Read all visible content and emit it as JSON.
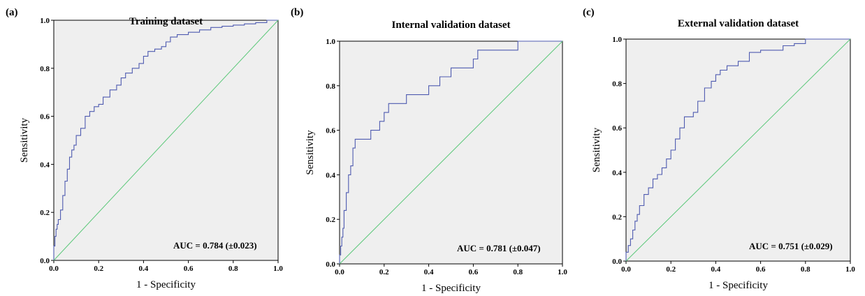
{
  "chart_data": [
    {
      "type": "line",
      "panel_label": "(a)",
      "title": "Training dataset",
      "xlabel": "1 - Specificity",
      "ylabel": "Sensitivity",
      "xlim": [
        0,
        1
      ],
      "ylim": [
        0,
        1
      ],
      "xticks": [
        "0.0",
        "0.2",
        "0.4",
        "0.6",
        "0.8",
        "1.0"
      ],
      "yticks": [
        "0.0",
        "0.2",
        "0.4",
        "0.6",
        "0.8",
        "1.0"
      ],
      "annotation": "AUC = 0.784 (±0.023)",
      "grid": false,
      "series": [
        {
          "role": "roc",
          "color": "#4f5bb0",
          "x": [
            0,
            0.005,
            0.01,
            0.015,
            0.02,
            0.03,
            0.04,
            0.05,
            0.06,
            0.07,
            0.08,
            0.09,
            0.1,
            0.12,
            0.14,
            0.16,
            0.18,
            0.2,
            0.22,
            0.25,
            0.28,
            0.3,
            0.32,
            0.35,
            0.38,
            0.4,
            0.42,
            0.45,
            0.48,
            0.5,
            0.52,
            0.55,
            0.6,
            0.65,
            0.7,
            0.75,
            0.8,
            0.85,
            0.9,
            0.95,
            1.0
          ],
          "y": [
            0,
            0.06,
            0.1,
            0.13,
            0.15,
            0.17,
            0.21,
            0.27,
            0.33,
            0.38,
            0.43,
            0.46,
            0.48,
            0.52,
            0.55,
            0.6,
            0.62,
            0.64,
            0.65,
            0.68,
            0.71,
            0.73,
            0.76,
            0.78,
            0.8,
            0.82,
            0.85,
            0.87,
            0.88,
            0.89,
            0.91,
            0.93,
            0.94,
            0.95,
            0.96,
            0.97,
            0.975,
            0.98,
            0.985,
            0.99,
            1.0
          ]
        },
        {
          "role": "reference",
          "color": "#5cc87a",
          "x": [
            0,
            1
          ],
          "y": [
            0,
            1
          ]
        }
      ]
    },
    {
      "type": "line",
      "panel_label": "(b)",
      "title": "Internal validation dataset",
      "xlabel": "1 - Specificity",
      "ylabel": "Sensitivity",
      "xlim": [
        0,
        1
      ],
      "ylim": [
        0,
        1
      ],
      "xticks": [
        "0.0",
        "0.2",
        "0.4",
        "0.6",
        "0.8",
        "1.0"
      ],
      "yticks": [
        "0.0",
        "0.2",
        "0.4",
        "0.6",
        "0.8",
        "1.0"
      ],
      "annotation": "AUC = 0.781 (±0.047)",
      "grid": false,
      "series": [
        {
          "role": "roc",
          "color": "#4f5bb0",
          "x": [
            0,
            0.005,
            0.01,
            0.015,
            0.02,
            0.03,
            0.04,
            0.05,
            0.06,
            0.07,
            0.08,
            0.1,
            0.14,
            0.18,
            0.2,
            0.22,
            0.24,
            0.3,
            0.35,
            0.4,
            0.45,
            0.5,
            0.55,
            0.6,
            0.62,
            0.7,
            0.8,
            0.82,
            0.9,
            1.0
          ],
          "y": [
            0,
            0.04,
            0.08,
            0.12,
            0.16,
            0.24,
            0.32,
            0.4,
            0.44,
            0.52,
            0.56,
            0.56,
            0.56,
            0.6,
            0.64,
            0.68,
            0.72,
            0.72,
            0.76,
            0.76,
            0.8,
            0.84,
            0.88,
            0.88,
            0.92,
            0.96,
            0.96,
            1.0,
            1.0,
            1.0
          ]
        },
        {
          "role": "reference",
          "color": "#5cc87a",
          "x": [
            0,
            1
          ],
          "y": [
            0,
            1
          ]
        }
      ]
    },
    {
      "type": "line",
      "panel_label": "(c)",
      "title": "External validation dataset",
      "xlabel": "1 - Specificity",
      "ylabel": "Sensitivity",
      "xlim": [
        0,
        1
      ],
      "ylim": [
        0,
        1
      ],
      "xticks": [
        "0.0",
        "0.2",
        "0.4",
        "0.6",
        "0.8",
        "1.0"
      ],
      "yticks": [
        "0.0",
        "0.2",
        "0.4",
        "0.6",
        "0.8",
        "1.0"
      ],
      "annotation": "AUC = 0.751 (±0.029)",
      "grid": false,
      "series": [
        {
          "role": "roc",
          "color": "#4f5bb0",
          "x": [
            0,
            0.01,
            0.02,
            0.03,
            0.04,
            0.05,
            0.06,
            0.08,
            0.1,
            0.12,
            0.14,
            0.16,
            0.18,
            0.2,
            0.22,
            0.24,
            0.26,
            0.3,
            0.32,
            0.35,
            0.38,
            0.4,
            0.42,
            0.45,
            0.5,
            0.55,
            0.6,
            0.7,
            0.75,
            0.8,
            0.85,
            1.0
          ],
          "y": [
            0,
            0.04,
            0.07,
            0.1,
            0.14,
            0.18,
            0.21,
            0.25,
            0.3,
            0.33,
            0.37,
            0.39,
            0.42,
            0.46,
            0.5,
            0.55,
            0.6,
            0.65,
            0.67,
            0.72,
            0.78,
            0.81,
            0.84,
            0.86,
            0.88,
            0.9,
            0.94,
            0.95,
            0.97,
            0.98,
            1.0,
            1.0
          ]
        },
        {
          "role": "reference",
          "color": "#5cc87a",
          "x": [
            0,
            1
          ],
          "y": [
            0,
            1
          ]
        }
      ]
    }
  ],
  "colors": {
    "plot_background": "#efefef",
    "roc_line": "#4f5bb0",
    "reference_line": "#5cc87a"
  }
}
